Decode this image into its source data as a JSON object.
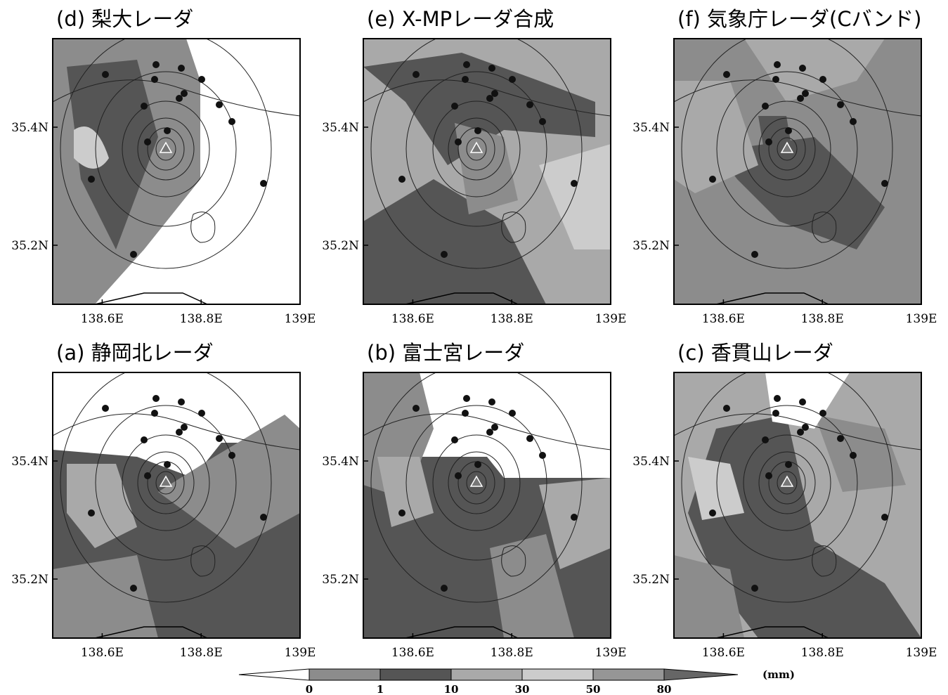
{
  "map": {
    "panels": [
      {
        "title": "(d) 梨大レーダ"
      },
      {
        "title": "(e) X-MPレーダ合成"
      },
      {
        "title": "(f) 気象庁レーダ(Cバンド)"
      },
      {
        "title": "(a) 静岡北レーダ"
      },
      {
        "title": "(b) 富士宮レーダ"
      },
      {
        "title": "(c) 香貫山レーダ"
      }
    ],
    "xlim": [
      138.5,
      139
    ],
    "ylim": [
      35.1,
      35.55
    ],
    "xticks": [
      {
        "value": 138.6,
        "label": "138.6E"
      },
      {
        "value": 138.8,
        "label": "138.8E"
      },
      {
        "value": 139,
        "label": "139E"
      }
    ],
    "yticks": [
      {
        "value": 35.4,
        "label": "35.4N"
      },
      {
        "value": 35.2,
        "label": "35.2N"
      }
    ],
    "colorbar": {
      "levels": [
        0,
        1,
        10,
        30,
        50,
        80
      ],
      "colors": [
        "#ffffff",
        "#8c8c8c",
        "#555555",
        "#a9a9a9",
        "#cccccc",
        "#969696",
        "#666666"
      ],
      "unit": "(mm)"
    }
  }
}
